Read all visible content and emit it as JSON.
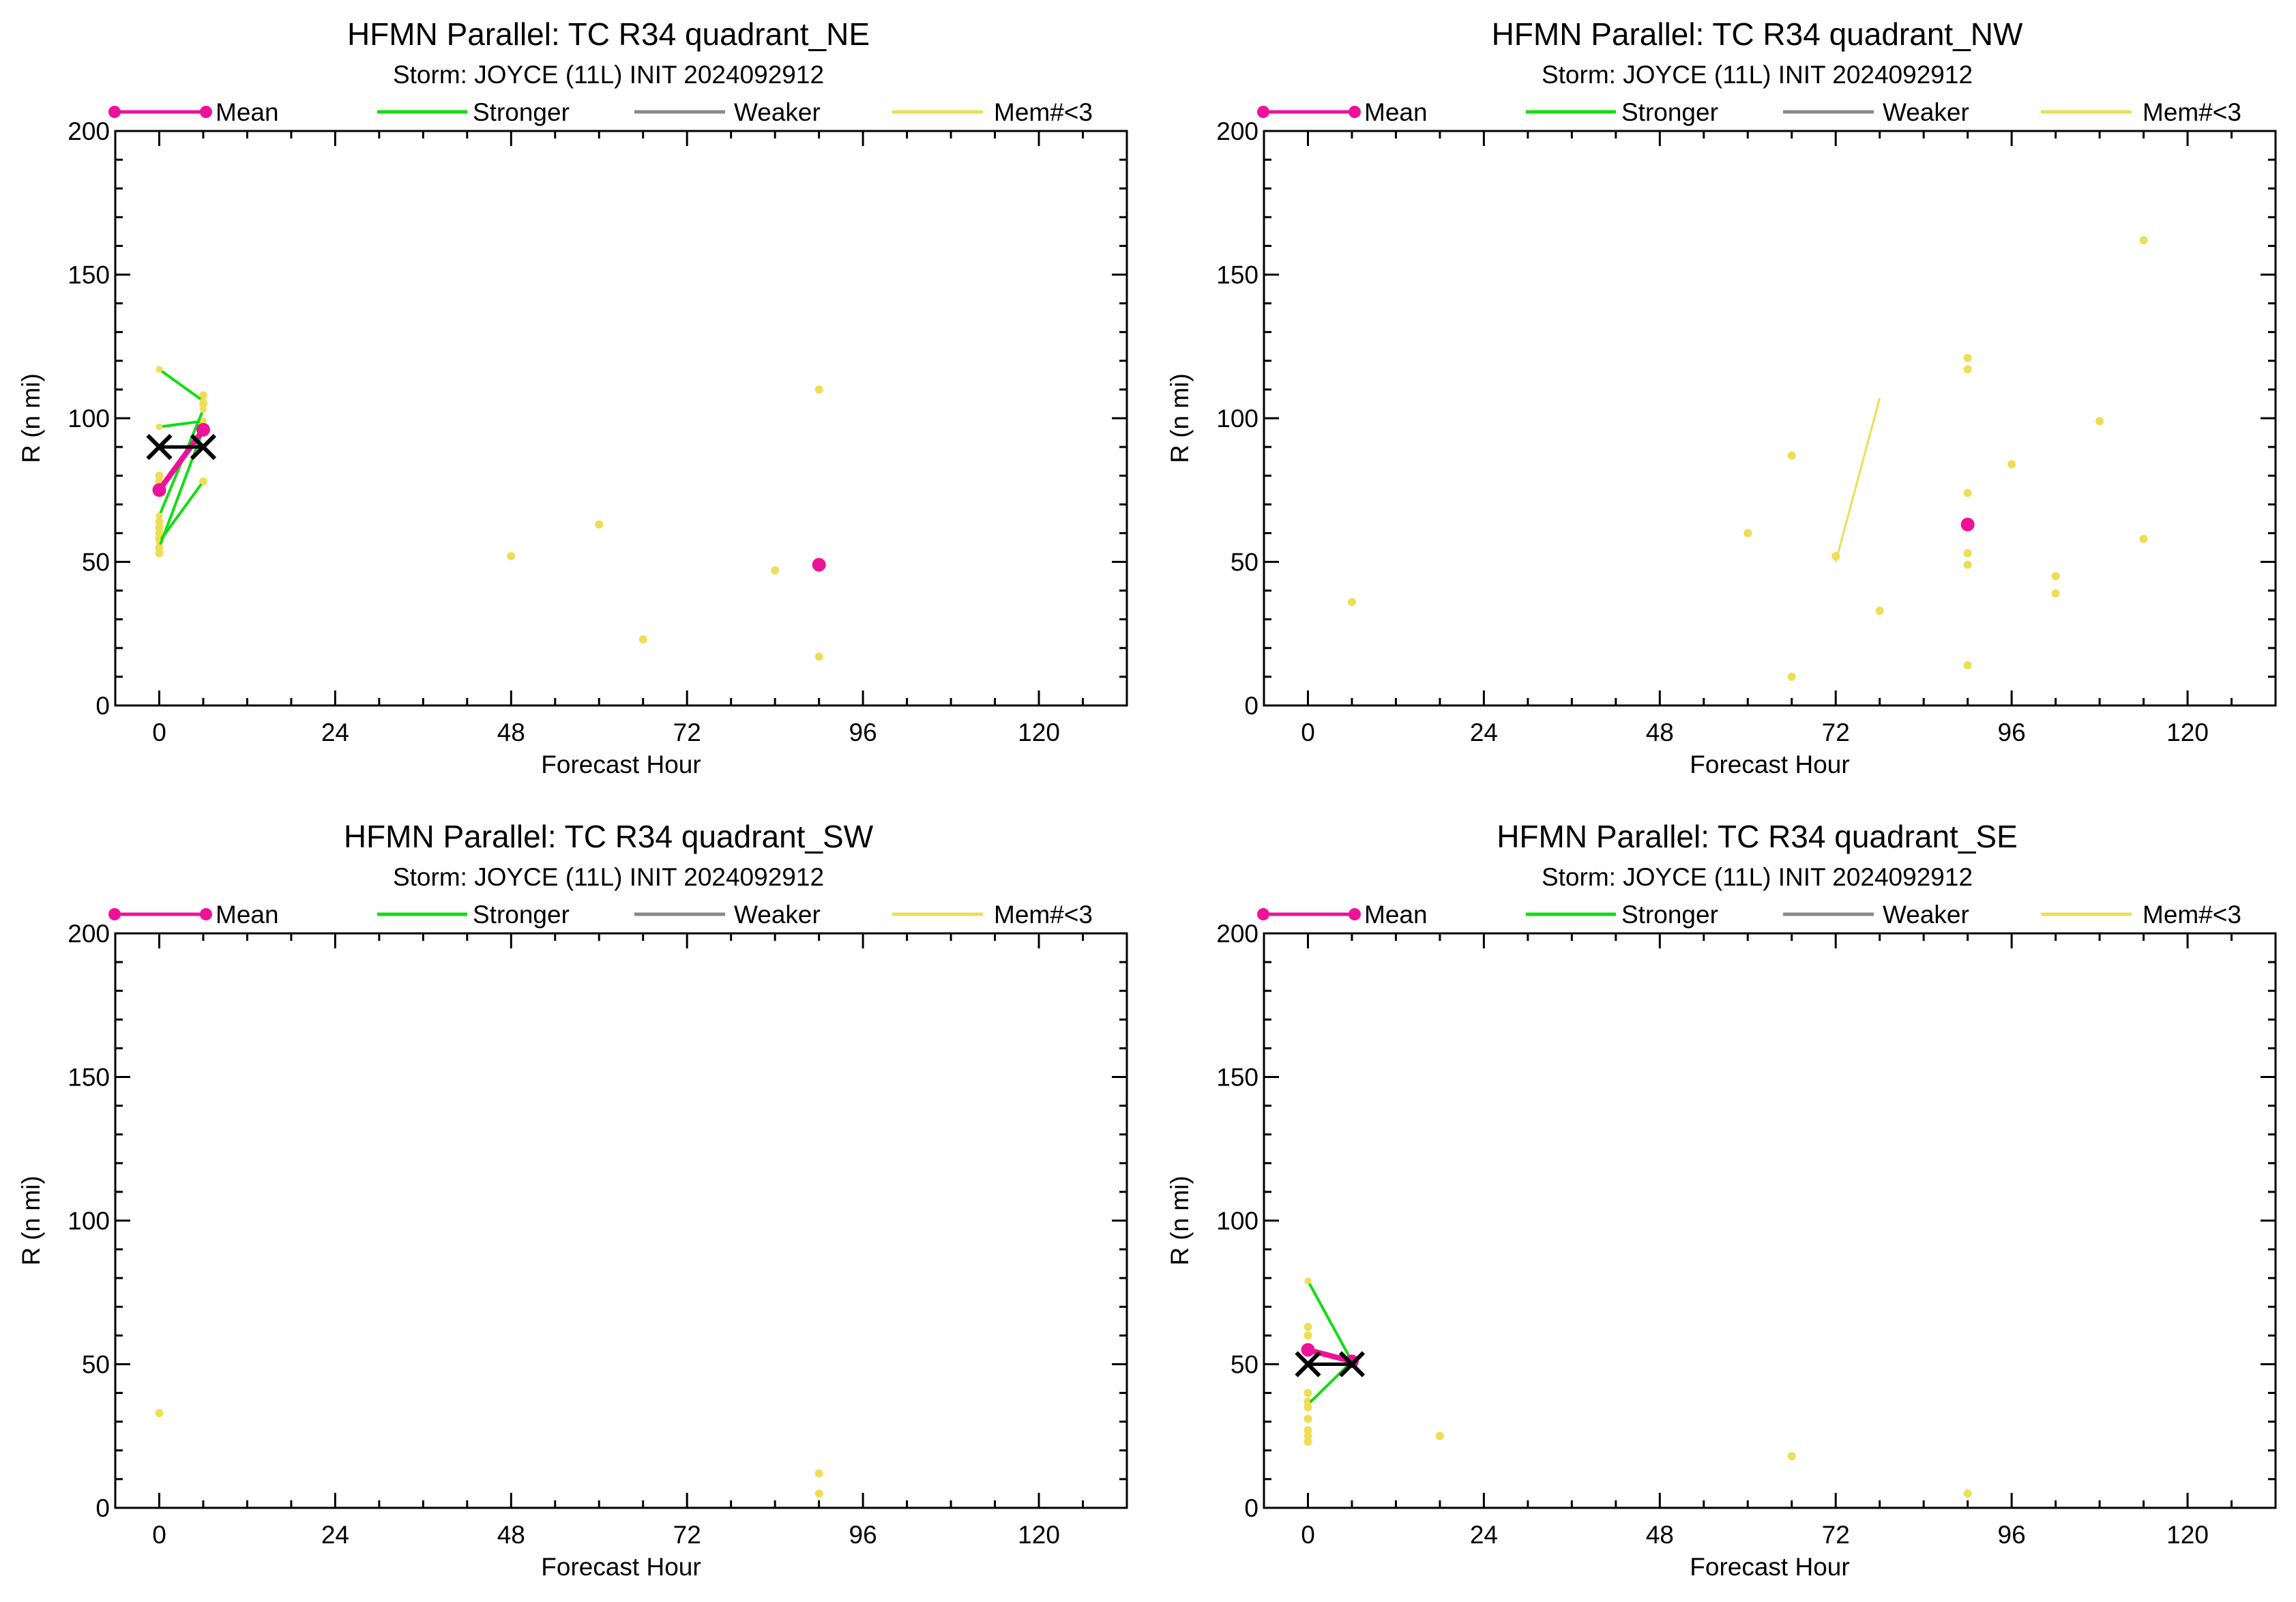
{
  "colors": {
    "mean": "#ee1199",
    "stronger": "#11dd11",
    "weaker": "#888888",
    "few_members": "#eedd55",
    "observed": "#000000",
    "axis": "#000000"
  },
  "legend": {
    "mean": "Mean",
    "stronger": "Stronger",
    "weaker": "Weaker",
    "few_members": "Mem#<3"
  },
  "chart_data": [
    {
      "type": "scatter",
      "title": "HFMN Parallel: TC  R34 quadrant_NE",
      "subtitle": "Storm: JOYCE (11L) INIT 2024092912",
      "xlabel": "Forecast Hour",
      "ylabel": "R (n mi)",
      "xlim": [
        -6,
        132
      ],
      "ylim": [
        0,
        200
      ],
      "xticks": [
        0,
        24,
        48,
        72,
        96,
        120
      ],
      "yticks": [
        0,
        50,
        100,
        150,
        200
      ],
      "mean": [
        [
          0,
          75
        ],
        [
          6,
          96
        ],
        [
          90,
          49
        ]
      ],
      "observed": [
        [
          0,
          90
        ],
        [
          6,
          90
        ]
      ],
      "stronger_lines": [
        [
          [
            0,
            117
          ],
          [
            6,
            106
          ]
        ],
        [
          [
            0,
            97
          ],
          [
            6,
            99
          ]
        ],
        [
          [
            0,
            66
          ],
          [
            6,
            103
          ]
        ],
        [
          [
            0,
            57
          ],
          [
            6,
            78
          ]
        ],
        [
          [
            0,
            55
          ],
          [
            6,
            96
          ]
        ]
      ],
      "weaker_lines": [],
      "few_member_lines": [],
      "few_member_points": [
        [
          0,
          53
        ],
        [
          0,
          55
        ],
        [
          0,
          58
        ],
        [
          0,
          60
        ],
        [
          0,
          62
        ],
        [
          0,
          64
        ],
        [
          0,
          76
        ],
        [
          0,
          78
        ],
        [
          0,
          80
        ],
        [
          6,
          78
        ],
        [
          6,
          108
        ],
        [
          6,
          105
        ],
        [
          48,
          52
        ],
        [
          60,
          63
        ],
        [
          66,
          23
        ],
        [
          84,
          47
        ],
        [
          90,
          17
        ],
        [
          90,
          110
        ]
      ]
    },
    {
      "type": "scatter",
      "title": "HFMN Parallel: TC  R34 quadrant_NW",
      "subtitle": "Storm: JOYCE (11L) INIT 2024092912",
      "xlabel": "Forecast Hour",
      "ylabel": "R (n mi)",
      "xlim": [
        -6,
        132
      ],
      "ylim": [
        0,
        200
      ],
      "xticks": [
        0,
        24,
        48,
        72,
        96,
        120
      ],
      "yticks": [
        0,
        50,
        100,
        150,
        200
      ],
      "mean": [
        [
          90,
          63
        ]
      ],
      "observed": [],
      "stronger_lines": [],
      "weaker_lines": [],
      "few_member_lines": [
        [
          [
            72,
            50
          ],
          [
            78,
            107
          ]
        ]
      ],
      "few_member_points": [
        [
          6,
          36
        ],
        [
          60,
          60
        ],
        [
          66,
          10
        ],
        [
          66,
          87
        ],
        [
          72,
          52
        ],
        [
          78,
          33
        ],
        [
          90,
          14
        ],
        [
          90,
          49
        ],
        [
          90,
          53
        ],
        [
          90,
          74
        ],
        [
          90,
          117
        ],
        [
          90,
          121
        ],
        [
          96,
          84
        ],
        [
          102,
          39
        ],
        [
          102,
          45
        ],
        [
          108,
          99
        ],
        [
          114,
          58
        ],
        [
          114,
          162
        ]
      ]
    },
    {
      "type": "scatter",
      "title": "HFMN Parallel: TC  R34 quadrant_SW",
      "subtitle": "Storm: JOYCE (11L) INIT 2024092912",
      "xlabel": "Forecast Hour",
      "ylabel": "R (n mi)",
      "xlim": [
        -6,
        132
      ],
      "ylim": [
        0,
        200
      ],
      "xticks": [
        0,
        24,
        48,
        72,
        96,
        120
      ],
      "yticks": [
        0,
        50,
        100,
        150,
        200
      ],
      "mean": [],
      "observed": [],
      "stronger_lines": [],
      "weaker_lines": [],
      "few_member_lines": [],
      "few_member_points": [
        [
          0,
          33
        ],
        [
          90,
          5
        ],
        [
          90,
          12
        ]
      ]
    },
    {
      "type": "scatter",
      "title": "HFMN Parallel: TC  R34 quadrant_SE",
      "subtitle": "Storm: JOYCE (11L) INIT 2024092912",
      "xlabel": "Forecast Hour",
      "ylabel": "R (n mi)",
      "xlim": [
        -6,
        132
      ],
      "ylim": [
        0,
        200
      ],
      "xticks": [
        0,
        24,
        48,
        72,
        96,
        120
      ],
      "yticks": [
        0,
        50,
        100,
        150,
        200
      ],
      "mean": [
        [
          0,
          55
        ],
        [
          6,
          51
        ]
      ],
      "observed": [
        [
          0,
          50
        ],
        [
          6,
          50
        ]
      ],
      "stronger_lines": [
        [
          [
            0,
            79
          ],
          [
            6,
            51
          ]
        ],
        [
          [
            0,
            36
          ],
          [
            6,
            51
          ]
        ]
      ],
      "weaker_lines": [],
      "few_member_lines": [],
      "few_member_points": [
        [
          0,
          23
        ],
        [
          0,
          25
        ],
        [
          0,
          27
        ],
        [
          0,
          31
        ],
        [
          0,
          35
        ],
        [
          0,
          37
        ],
        [
          0,
          40
        ],
        [
          0,
          60
        ],
        [
          0,
          63
        ],
        [
          18,
          25
        ],
        [
          66,
          18
        ],
        [
          90,
          5
        ]
      ]
    }
  ]
}
